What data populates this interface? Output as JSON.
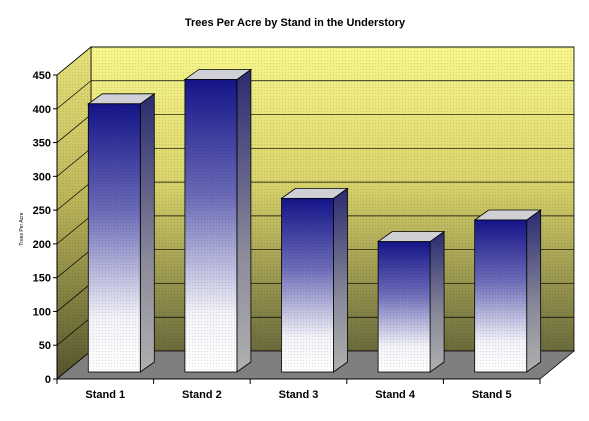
{
  "chart_data": {
    "type": "bar",
    "title": "Trees Per Acre by Stand in the Understory",
    "ylabel": "Trees Per Acre",
    "xlabel": "",
    "categories": [
      "Stand 1",
      "Stand 2",
      "Stand 3",
      "Stand 4",
      "Stand 5"
    ],
    "values": [
      397,
      433,
      257,
      193,
      225
    ],
    "ylim": [
      0,
      450
    ],
    "yticks": [
      0,
      50,
      100,
      150,
      200,
      250,
      300,
      350,
      400,
      450
    ],
    "grid": true,
    "legend": "none",
    "style": "3d",
    "colors": {
      "bar_top": "#1a1a8c",
      "bar_bottom": "#ffffff",
      "bar_side": "#9a9a9a",
      "bar_cap": "#d0d0d0",
      "wall_top": "#f5f58a",
      "wall_bottom": "#6b6b3a",
      "floor": "#808080"
    }
  }
}
